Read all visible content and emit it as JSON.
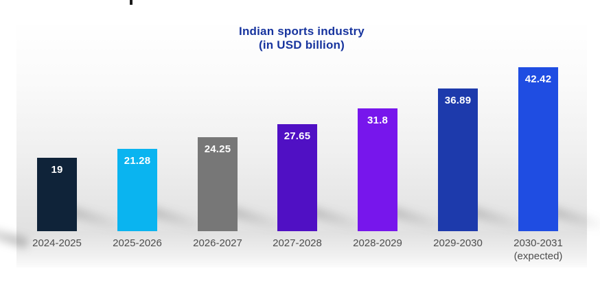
{
  "title": {
    "line1": "Indian sports industry",
    "line2": "(in USD billion)"
  },
  "colors": {
    "title_text": "#17349e",
    "category_text": "#4d4d4d",
    "value_text": "#ffffff",
    "shadow": "rgba(70,70,70,0.30)"
  },
  "chart_data": {
    "type": "bar",
    "title": "Indian sports industry (in USD billion)",
    "categories": [
      "2024-2025",
      "2025-2026",
      "2026-2027",
      "2027-2028",
      "2028-2029",
      "2029-2030",
      "2030-2031\n(expected)"
    ],
    "values": [
      19,
      21.28,
      24.25,
      27.65,
      31.8,
      36.89,
      42.42
    ],
    "value_labels": [
      "19",
      "21.28",
      "24.25",
      "27.65",
      "31.8",
      "36.89",
      "42.42"
    ],
    "bar_colors": [
      "#0f2339",
      "#0ab4f0",
      "#777777",
      "#5010c4",
      "#7716ec",
      "#1d3aac",
      "#1f4de2"
    ],
    "xlabel": "",
    "ylabel": "USD billion",
    "ylim": [
      0,
      45
    ],
    "grid": false,
    "legend": false,
    "note": "last bar is an expected/forecast value"
  }
}
